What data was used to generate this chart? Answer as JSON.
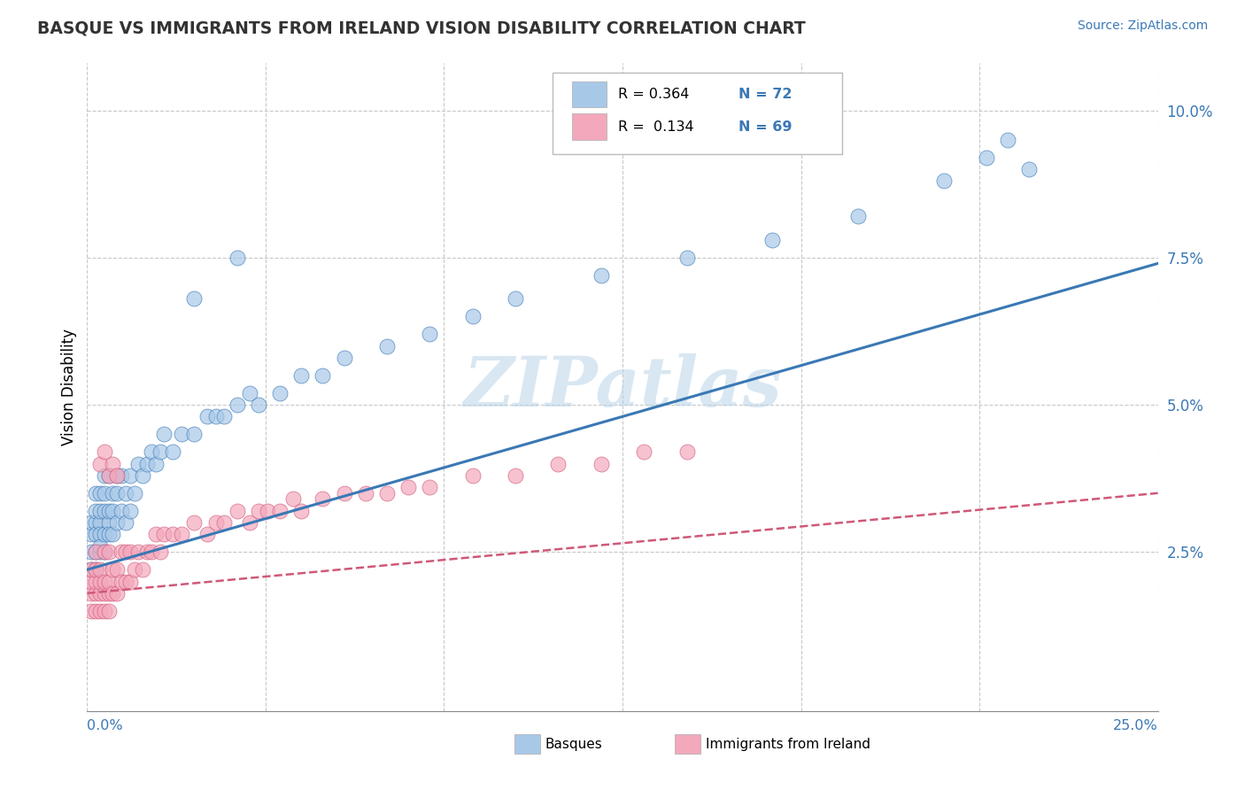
{
  "title": "BASQUE VS IMMIGRANTS FROM IRELAND VISION DISABILITY CORRELATION CHART",
  "source": "Source: ZipAtlas.com",
  "ylabel": "Vision Disability",
  "xlim": [
    0.0,
    0.25
  ],
  "ylim": [
    -0.002,
    0.108
  ],
  "blue_color": "#a8c8e8",
  "pink_color": "#f4a8bc",
  "blue_line_color": "#3a78b5",
  "pink_line_color": "#d05878",
  "watermark": "ZIPatlas",
  "blue_intercept": 0.022,
  "blue_slope": 0.208,
  "pink_intercept": 0.018,
  "pink_slope": 0.068,
  "basques_x": [
    0.001,
    0.001,
    0.001,
    0.001,
    0.002,
    0.002,
    0.002,
    0.002,
    0.002,
    0.002,
    0.003,
    0.003,
    0.003,
    0.003,
    0.003,
    0.003,
    0.004,
    0.004,
    0.004,
    0.004,
    0.004,
    0.005,
    0.005,
    0.005,
    0.005,
    0.006,
    0.006,
    0.006,
    0.007,
    0.007,
    0.007,
    0.008,
    0.008,
    0.009,
    0.009,
    0.01,
    0.01,
    0.011,
    0.012,
    0.013,
    0.014,
    0.015,
    0.016,
    0.017,
    0.018,
    0.02,
    0.022,
    0.025,
    0.028,
    0.03,
    0.032,
    0.035,
    0.038,
    0.04,
    0.045,
    0.05,
    0.055,
    0.06,
    0.07,
    0.08,
    0.09,
    0.1,
    0.12,
    0.14,
    0.16,
    0.18,
    0.2,
    0.21,
    0.215,
    0.22,
    0.025,
    0.035
  ],
  "basques_y": [
    0.025,
    0.028,
    0.022,
    0.03,
    0.025,
    0.03,
    0.028,
    0.032,
    0.022,
    0.035,
    0.025,
    0.03,
    0.028,
    0.032,
    0.026,
    0.035,
    0.028,
    0.032,
    0.025,
    0.035,
    0.038,
    0.03,
    0.028,
    0.032,
    0.038,
    0.028,
    0.032,
    0.035,
    0.03,
    0.035,
    0.038,
    0.032,
    0.038,
    0.03,
    0.035,
    0.032,
    0.038,
    0.035,
    0.04,
    0.038,
    0.04,
    0.042,
    0.04,
    0.042,
    0.045,
    0.042,
    0.045,
    0.045,
    0.048,
    0.048,
    0.048,
    0.05,
    0.052,
    0.05,
    0.052,
    0.055,
    0.055,
    0.058,
    0.06,
    0.062,
    0.065,
    0.068,
    0.072,
    0.075,
    0.078,
    0.082,
    0.088,
    0.092,
    0.095,
    0.09,
    0.068,
    0.075
  ],
  "ireland_x": [
    0.001,
    0.001,
    0.001,
    0.001,
    0.002,
    0.002,
    0.002,
    0.002,
    0.002,
    0.003,
    0.003,
    0.003,
    0.003,
    0.004,
    0.004,
    0.004,
    0.004,
    0.005,
    0.005,
    0.005,
    0.005,
    0.006,
    0.006,
    0.007,
    0.007,
    0.008,
    0.008,
    0.009,
    0.009,
    0.01,
    0.01,
    0.011,
    0.012,
    0.013,
    0.014,
    0.015,
    0.016,
    0.017,
    0.018,
    0.02,
    0.022,
    0.025,
    0.028,
    0.03,
    0.032,
    0.035,
    0.038,
    0.04,
    0.042,
    0.045,
    0.048,
    0.05,
    0.055,
    0.06,
    0.065,
    0.07,
    0.075,
    0.08,
    0.09,
    0.1,
    0.11,
    0.12,
    0.13,
    0.14,
    0.003,
    0.004,
    0.005,
    0.006,
    0.007
  ],
  "ireland_y": [
    0.015,
    0.018,
    0.02,
    0.022,
    0.015,
    0.018,
    0.02,
    0.022,
    0.025,
    0.015,
    0.018,
    0.02,
    0.022,
    0.015,
    0.018,
    0.02,
    0.025,
    0.015,
    0.018,
    0.02,
    0.025,
    0.018,
    0.022,
    0.018,
    0.022,
    0.02,
    0.025,
    0.02,
    0.025,
    0.02,
    0.025,
    0.022,
    0.025,
    0.022,
    0.025,
    0.025,
    0.028,
    0.025,
    0.028,
    0.028,
    0.028,
    0.03,
    0.028,
    0.03,
    0.03,
    0.032,
    0.03,
    0.032,
    0.032,
    0.032,
    0.034,
    0.032,
    0.034,
    0.035,
    0.035,
    0.035,
    0.036,
    0.036,
    0.038,
    0.038,
    0.04,
    0.04,
    0.042,
    0.042,
    0.04,
    0.042,
    0.038,
    0.04,
    0.038
  ]
}
